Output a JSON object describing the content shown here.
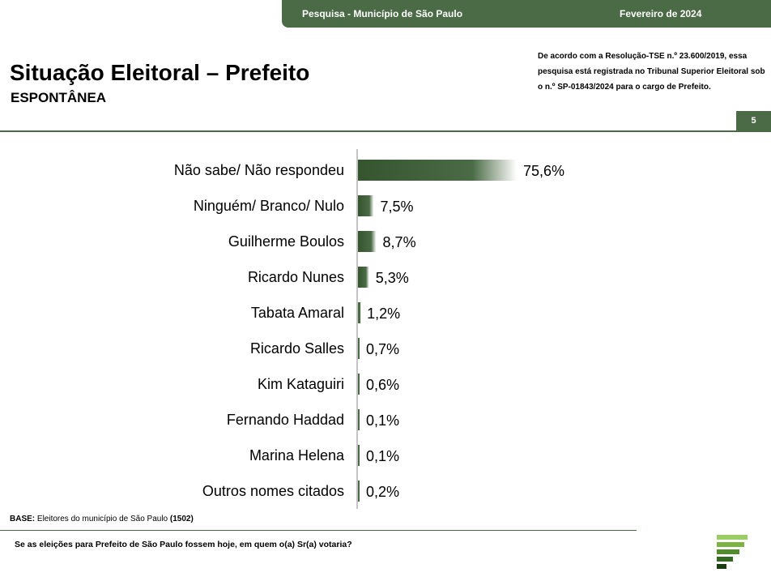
{
  "header": {
    "survey_label": "Pesquisa - Município de São Paulo",
    "date_label": "Fevereiro de 2024"
  },
  "title": "Situação Eleitoral – Prefeito",
  "subtitle": "ESPONTÂNEA",
  "registration_note": "De acordo com a Resolução-TSE n.º 23.600/2019, essa pesquisa está registrada no Tribunal Superior Eleitoral sob o n.º SP-01843/2024 para o cargo de Prefeito.",
  "page_number": "5",
  "base": {
    "label": "BASE:",
    "text": " Eleitores do município de São Paulo ",
    "count": "(1502)"
  },
  "question": "Se as eleições para Prefeito de São Paulo fossem hoje, em quem o(a) Sr(a) votaria?",
  "colors": {
    "brand_green": "#4a6b45",
    "bar_dark": "#35552f",
    "bar_light": "#ffffff"
  },
  "chart_data": {
    "type": "bar",
    "orientation": "horizontal",
    "categories": [
      "Não sabe/ Não respondeu",
      "Ninguém/ Branco/ Nulo",
      "Guilherme Boulos",
      "Ricardo Nunes",
      "Tabata Amaral",
      "Ricardo Salles",
      "Kim Kataguiri",
      "Fernando Haddad",
      "Marina Helena",
      "Outros nomes citados"
    ],
    "values": [
      75.6,
      7.5,
      8.7,
      5.3,
      1.2,
      0.7,
      0.6,
      0.1,
      0.1,
      0.2
    ],
    "value_labels": [
      "75,6%",
      "7,5%",
      "8,7%",
      "5,3%",
      "1,2%",
      "0,7%",
      "0,6%",
      "0,1%",
      "0,1%",
      "0,2%"
    ],
    "xlim": [
      0,
      100
    ],
    "grid": false
  }
}
